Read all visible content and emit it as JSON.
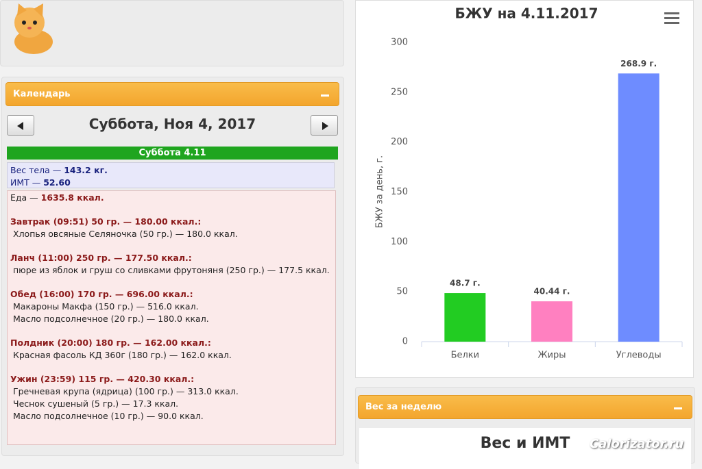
{
  "calendar": {
    "title": "Календарь",
    "date": "Суббота, Ноя 4, 2017",
    "day_header": "Суббота 4.11",
    "body": {
      "weight_label": "Вес тела —",
      "weight": "143.2 кг.",
      "bmi_label": "ИМТ —",
      "bmi": "52.60"
    },
    "food": {
      "total_label": "Еда —",
      "total": "1635.8 ккал.",
      "meals": [
        {
          "header": "Завтрак (09:51) 50 гр. — 180.00 ккал.:",
          "items": [
            "Хлопья овсяные Селяночка (50 гр.) — 180.0 ккал."
          ]
        },
        {
          "header": "Ланч (11:00) 250 гр. — 177.50 ккал.:",
          "items": [
            "пюре из яблок и груш со сливками фрутоняня (250 гр.) — 177.5 ккал."
          ]
        },
        {
          "header": "Обед (16:00) 170 гр. — 696.00 ккал.:",
          "items": [
            "Макароны Макфа (150 гр.) — 516.0 ккал.",
            "Масло подсолнечное (20 гр.) — 180.0 ккал."
          ]
        },
        {
          "header": "Полдник (20:00) 180 гр. — 162.00 ккал.:",
          "items": [
            "Красная фасоль КД 360г (180 гр.) — 162.0 ккал."
          ]
        },
        {
          "header": "Ужин (23:59) 115 гр. — 420.30 ккал.:",
          "items": [
            "Гречневая крупа (ядрица) (100 гр.) — 313.0 ккал.",
            "Чеснок сушеный (5 гр.) — 17.3 ккал.",
            "Масло подсолнечное (10 гр.) — 90.0 ккал."
          ]
        }
      ]
    }
  },
  "weight_panel": {
    "title": "Вес за неделю",
    "chart_title": "Вес и ИМТ"
  },
  "watermark": "Calorizator.ru",
  "chart_data": {
    "type": "bar",
    "title": "БЖУ на 4.11.2017",
    "y_label": "БЖУ за день, г.",
    "categories": [
      "Белки",
      "Жиры",
      "Углеводы"
    ],
    "values": [
      48.7,
      40.44,
      268.9
    ],
    "value_labels": [
      "48.7 г.",
      "40.44 г.",
      "268.9 г."
    ],
    "colors": [
      "#22cc22",
      "#ff80c0",
      "#6e8cff"
    ],
    "ylim": [
      0,
      300
    ],
    "yticks": [
      0,
      50,
      100,
      150,
      200,
      250,
      300
    ]
  }
}
